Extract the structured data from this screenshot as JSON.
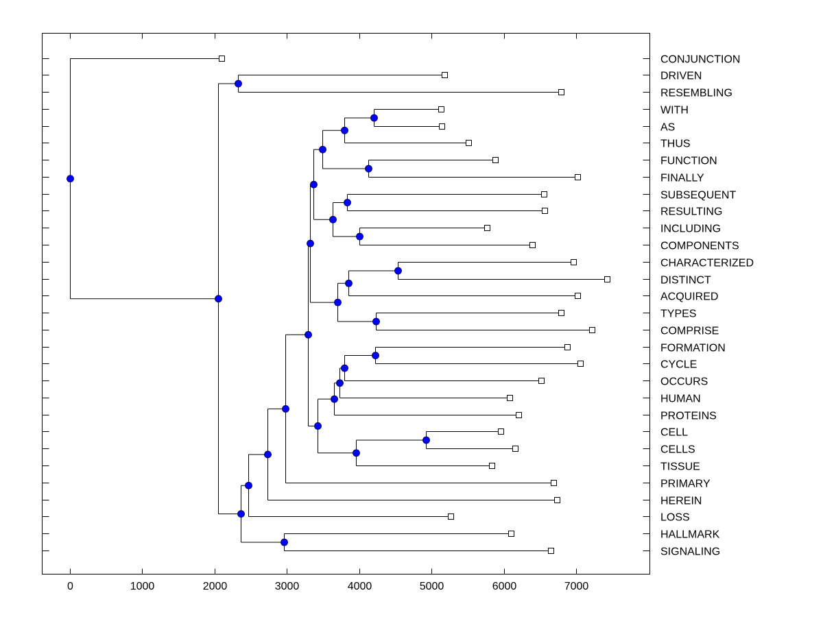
{
  "chart_data": {
    "type": "dendrogram",
    "title": "",
    "xlabel": "",
    "ylabel": "",
    "xlim": [
      -380,
      7850
    ],
    "xticks": [
      0,
      1000,
      2000,
      3000,
      4000,
      5000,
      6000,
      7000
    ],
    "xtick_labels": [
      "0",
      "1000",
      "2000",
      "3000",
      "4000",
      "5000",
      "6000",
      "7000"
    ],
    "grid": false,
    "leaf_marker": "open-square",
    "node_marker": "filled-circle",
    "node_color": "#0000ff",
    "line_color": "#000000",
    "leaves": [
      {
        "label": "CONJUNCTION",
        "x": 2100
      },
      {
        "label": "DRIVEN",
        "x": 5180
      },
      {
        "label": "RESEMBLING",
        "x": 6790
      },
      {
        "label": "WITH",
        "x": 5130
      },
      {
        "label": "AS",
        "x": 5140
      },
      {
        "label": "THUS",
        "x": 5510
      },
      {
        "label": "FUNCTION",
        "x": 5880
      },
      {
        "label": "FINALLY",
        "x": 7020
      },
      {
        "label": "SUBSEQUENT",
        "x": 6550
      },
      {
        "label": "RESULTING",
        "x": 6560
      },
      {
        "label": "INCLUDING",
        "x": 5770
      },
      {
        "label": "COMPONENTS",
        "x": 6390
      },
      {
        "label": "CHARACTERIZED",
        "x": 6960
      },
      {
        "label": "DISTINCT",
        "x": 7430
      },
      {
        "label": "ACQUIRED",
        "x": 7020
      },
      {
        "label": "TYPES",
        "x": 6790
      },
      {
        "label": "COMPRISE",
        "x": 7220
      },
      {
        "label": "FORMATION",
        "x": 6880
      },
      {
        "label": "CYCLE",
        "x": 7060
      },
      {
        "label": "OCCURS",
        "x": 6520
      },
      {
        "label": "HUMAN",
        "x": 6080
      },
      {
        "label": "PROTEINS",
        "x": 6200
      },
      {
        "label": "CELL",
        "x": 5960
      },
      {
        "label": "CELLS",
        "x": 6160
      },
      {
        "label": "TISSUE",
        "x": 5830
      },
      {
        "label": "PRIMARY",
        "x": 6690
      },
      {
        "label": "HEREIN",
        "x": 6730
      },
      {
        "label": "LOSS",
        "x": 5260
      },
      {
        "label": "HALLMARK",
        "x": 6100
      },
      {
        "label": "SIGNALING",
        "x": 6650
      }
    ],
    "tree": {
      "x": 0,
      "children": [
        {
          "leaf": 0
        },
        {
          "x": 2050,
          "children": [
            {
              "x": 2320,
              "children": [
                {
                  "leaf": 1
                },
                {
                  "leaf": 2
                }
              ]
            },
            {
              "x": 2360,
              "children": [
                {
                  "x": 2470,
                  "children": [
                    {
                      "x": 2730,
                      "children": [
                        {
                          "x": 2980,
                          "children": [
                            {
                              "x": 3290,
                              "children": [
                                {
                                  "x": 3320,
                                  "children": [
                                    {
                                      "x": 3370,
                                      "children": [
                                        {
                                          "x": 3490,
                                          "children": [
                                            {
                                              "x": 3790,
                                              "children": [
                                                {
                                                  "x": 4200,
                                                  "children": [
                                                    {
                                                      "leaf": 3
                                                    },
                                                    {
                                                      "leaf": 4
                                                    }
                                                  ]
                                                },
                                                {
                                                  "leaf": 5
                                                }
                                              ]
                                            },
                                            {
                                              "x": 4130,
                                              "children": [
                                                {
                                                  "leaf": 6
                                                },
                                                {
                                                  "leaf": 7
                                                }
                                              ]
                                            }
                                          ]
                                        },
                                        {
                                          "x": 3630,
                                          "children": [
                                            {
                                              "x": 3830,
                                              "children": [
                                                {
                                                  "leaf": 8
                                                },
                                                {
                                                  "leaf": 9
                                                }
                                              ]
                                            },
                                            {
                                              "x": 4000,
                                              "children": [
                                                {
                                                  "leaf": 10
                                                },
                                                {
                                                  "leaf": 11
                                                }
                                              ]
                                            }
                                          ]
                                        }
                                      ]
                                    },
                                    {
                                      "x": 3700,
                                      "children": [
                                        {
                                          "x": 3850,
                                          "children": [
                                            {
                                              "x": 4530,
                                              "children": [
                                                {
                                                  "leaf": 12
                                                },
                                                {
                                                  "leaf": 13
                                                }
                                              ]
                                            },
                                            {
                                              "leaf": 14
                                            }
                                          ]
                                        },
                                        {
                                          "x": 4230,
                                          "children": [
                                            {
                                              "leaf": 15
                                            },
                                            {
                                              "leaf": 16
                                            }
                                          ]
                                        }
                                      ]
                                    }
                                  ]
                                },
                                {
                                  "x": 3420,
                                  "children": [
                                    {
                                      "x": 3650,
                                      "children": [
                                        {
                                          "x": 3730,
                                          "children": [
                                            {
                                              "x": 3790,
                                              "children": [
                                                {
                                                  "x": 4220,
                                                  "children": [
                                                    {
                                                      "leaf": 17
                                                    },
                                                    {
                                                      "leaf": 18
                                                    }
                                                  ]
                                                },
                                                {
                                                  "leaf": 19
                                                }
                                              ]
                                            },
                                            {
                                              "leaf": 20
                                            }
                                          ]
                                        },
                                        {
                                          "leaf": 21
                                        }
                                      ]
                                    },
                                    {
                                      "x": 3960,
                                      "children": [
                                        {
                                          "x": 4920,
                                          "children": [
                                            {
                                              "leaf": 22
                                            },
                                            {
                                              "leaf": 23
                                            }
                                          ]
                                        },
                                        {
                                          "leaf": 24
                                        }
                                      ]
                                    }
                                  ]
                                }
                              ]
                            },
                            {
                              "leaf": 25
                            }
                          ]
                        },
                        {
                          "leaf": 26
                        }
                      ]
                    },
                    {
                      "leaf": 27
                    }
                  ]
                },
                {
                  "x": 2960,
                  "children": [
                    {
                      "leaf": 28
                    },
                    {
                      "leaf": 29
                    }
                  ]
                }
              ]
            }
          ]
        }
      ]
    }
  }
}
